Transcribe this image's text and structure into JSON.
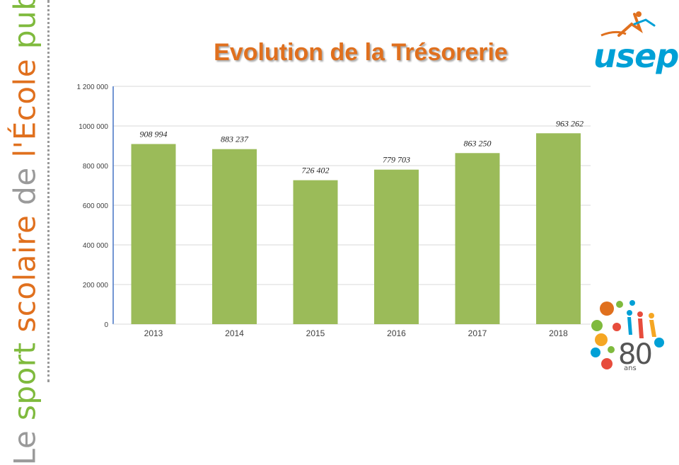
{
  "banner": {
    "segments": [
      {
        "text": "Le ",
        "color": "#9a9a9a"
      },
      {
        "text": "sport",
        "color": "#7fba3d"
      },
      {
        "text": " scolaire ",
        "color": "#e0701e"
      },
      {
        "text": "de ",
        "color": "#9a9a9a"
      },
      {
        "text": "l'École",
        "color": "#e0701e"
      },
      {
        "text": " publique",
        "color": "#7fba3d"
      }
    ]
  },
  "title": "Evolution de la Trésorerie",
  "logo": {
    "text": "usep"
  },
  "anniversary": {
    "number": "80",
    "sub": "ans"
  },
  "chart_data": {
    "type": "bar",
    "title": "Evolution de la Trésorerie",
    "categories": [
      "2013",
      "2014",
      "2015",
      "2016",
      "2017",
      "2018"
    ],
    "values": [
      908994,
      883237,
      726402,
      779703,
      863250,
      963262
    ],
    "data_labels": [
      "908 994",
      "883 237",
      "726 402",
      "779 703",
      "863 250",
      "963 262"
    ],
    "ylim": [
      0,
      1200000
    ],
    "yticks": [
      {
        "value": 0,
        "label": "0"
      },
      {
        "value": 200000,
        "label": "200 000"
      },
      {
        "value": 400000,
        "label": "400 000"
      },
      {
        "value": 600000,
        "label": "600 000"
      },
      {
        "value": 800000,
        "label": "800 000"
      },
      {
        "value": 1000000,
        "label": "1000 000"
      },
      {
        "value": 1200000,
        "label": "1 200 000"
      }
    ],
    "grid": true,
    "bar_color": "#9bbb59",
    "gridline_color": "#d9d9d9",
    "axis_color": "#4472c4",
    "xlabel": "",
    "ylabel": ""
  }
}
